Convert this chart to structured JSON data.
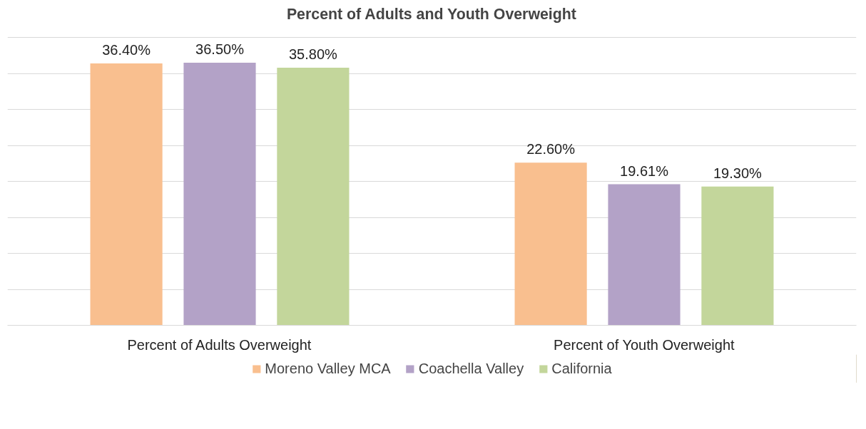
{
  "chart_data": {
    "type": "bar",
    "title": "Percent of Adults and Youth Overweight",
    "categories": [
      "Percent of Adults Overweight",
      "Percent of Youth Overweight"
    ],
    "series": [
      {
        "name": "Moreno Valley MCA",
        "color": "#f9bf8f",
        "values": [
          36.4,
          22.6
        ],
        "value_labels": [
          "36.40%",
          "22.60%"
        ]
      },
      {
        "name": "Coachella Valley",
        "color": "#b3a2c7",
        "values": [
          36.5,
          19.61
        ],
        "value_labels": [
          "36.50%",
          "19.61%"
        ]
      },
      {
        "name": "California",
        "color": "#c3d69b",
        "values": [
          35.8,
          19.3
        ],
        "value_labels": [
          "35.80%",
          "19.30%"
        ]
      }
    ],
    "yticks": [
      {
        "value": 0,
        "label": null
      },
      {
        "value": 5,
        "label": null
      },
      {
        "value": 10,
        "label": null
      },
      {
        "value": 15,
        "label": null
      },
      {
        "value": 20,
        "label": null
      },
      {
        "value": 25,
        "label": null
      },
      {
        "value": 30,
        "label": null
      },
      {
        "value": 35,
        "label": null
      },
      {
        "value": 40,
        "label": null
      }
    ],
    "tick_labels": "x",
    "grid": "y",
    "legend": "bottom"
  }
}
